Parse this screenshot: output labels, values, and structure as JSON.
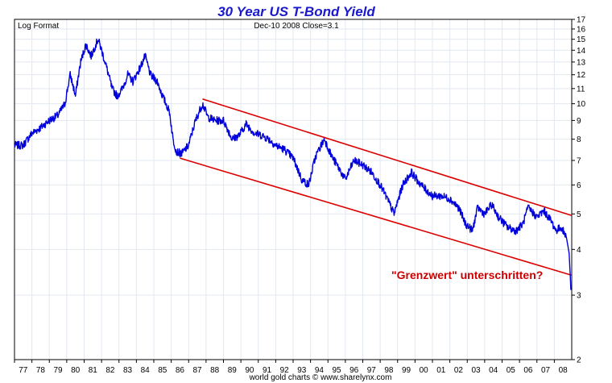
{
  "chart_data": {
    "type": "line",
    "title": "30 Year US T-Bond Yield",
    "scale_label": "Log Format",
    "last_close": "Dec-10 2008    Close=3.1",
    "source": "world gold charts © www.sharelynx.com",
    "annotation": "\"Grenzwert\" unterschritten?",
    "x_tick_labels": [
      "77",
      "78",
      "79",
      "80",
      "81",
      "82",
      "83",
      "84",
      "85",
      "86",
      "87",
      "88",
      "89",
      "90",
      "91",
      "92",
      "93",
      "94",
      "95",
      "96",
      "97",
      "98",
      "99",
      "00",
      "01",
      "02",
      "03",
      "04",
      "05",
      "06",
      "07",
      "08"
    ],
    "y_tick_labels": [
      "17",
      "16",
      "15",
      "14",
      "13",
      "12",
      "11",
      "10",
      "9",
      "8",
      "7",
      "6",
      "5",
      "4",
      "3",
      "2"
    ],
    "y_scale": "log",
    "ylim": [
      2,
      17
    ],
    "xlim": [
      1977.0,
      2009.0
    ],
    "grid": true,
    "colors": {
      "series": "#0000dd",
      "channel": "#dd0000",
      "title": "#1a1acc",
      "annotation": "#cc0000",
      "grid": "#e2e8f0"
    },
    "series": [
      {
        "x": [
          1977.0,
          1977.5,
          1978.0,
          1978.5,
          1979.0,
          1979.5,
          1979.9,
          1980.2,
          1980.5,
          1980.8,
          1981.1,
          1981.4,
          1981.8,
          1982.2,
          1982.6,
          1982.9,
          1983.2,
          1983.5,
          1983.8,
          1984.2,
          1984.5,
          1984.8,
          1985.2,
          1985.5,
          1985.9,
          1986.1,
          1986.3,
          1986.6,
          1987.0,
          1987.4,
          1987.8,
          1988.1,
          1988.5,
          1989.0,
          1989.5,
          1989.9,
          1990.3,
          1990.8,
          1991.2,
          1991.6,
          1992.0,
          1992.5,
          1993.0,
          1993.5,
          1993.9,
          1994.3,
          1994.8,
          1995.2,
          1995.6,
          1996.0,
          1996.5,
          1997.0,
          1997.5,
          1998.0,
          1998.4,
          1998.8,
          1999.3,
          1999.8,
          2000.1,
          2000.5,
          2001.0,
          2001.5,
          2002.0,
          2002.5,
          2002.9,
          2003.3,
          2003.6,
          2004.0,
          2004.4,
          2004.8,
          2005.3,
          2005.8,
          2006.2,
          2006.5,
          2007.0,
          2007.4,
          2007.8,
          2008.1,
          2008.4,
          2008.7,
          2008.85,
          2008.95
        ],
        "y": [
          7.7,
          7.7,
          8.3,
          8.6,
          9.0,
          9.3,
          10.0,
          12.0,
          10.5,
          13.0,
          14.5,
          13.5,
          15.0,
          13.0,
          11.0,
          10.5,
          11.0,
          12.0,
          11.5,
          12.5,
          13.5,
          12.0,
          11.5,
          10.5,
          9.5,
          8.0,
          7.4,
          7.3,
          7.7,
          9.0,
          10.0,
          9.2,
          9.0,
          9.0,
          8.0,
          8.2,
          8.8,
          8.3,
          8.2,
          8.0,
          7.7,
          7.5,
          7.1,
          6.2,
          6.0,
          7.2,
          8.0,
          7.2,
          6.7,
          6.2,
          7.0,
          6.8,
          6.5,
          6.0,
          5.5,
          5.0,
          6.0,
          6.5,
          6.2,
          5.9,
          5.6,
          5.6,
          5.5,
          5.2,
          4.7,
          4.5,
          5.2,
          5.0,
          5.3,
          4.9,
          4.6,
          4.5,
          4.7,
          5.2,
          4.9,
          5.1,
          4.8,
          4.5,
          4.6,
          4.3,
          3.9,
          3.1
        ]
      }
    ],
    "channel_lines": [
      {
        "name": "upper",
        "x": [
          1987.8,
          2009.0
        ],
        "y": [
          10.3,
          4.95
        ]
      },
      {
        "name": "lower",
        "x": [
          1986.5,
          2009.0
        ],
        "y": [
          7.1,
          3.4
        ]
      }
    ]
  }
}
